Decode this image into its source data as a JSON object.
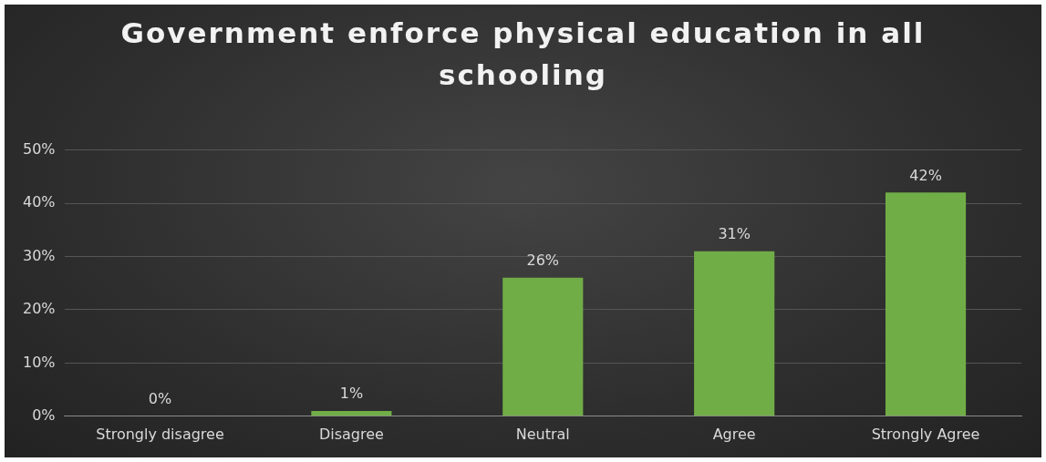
{
  "chart_data": {
    "type": "bar",
    "title": "Government enforce physical education in all schooling",
    "categories": [
      "Strongly disagree",
      "Disagree",
      "Neutral",
      "Agree",
      "Strongly Agree"
    ],
    "values": [
      0,
      1,
      26,
      31,
      42
    ],
    "value_labels": [
      "0%",
      "1%",
      "26%",
      "31%",
      "42%"
    ],
    "color": "#70ad47",
    "ylim": [
      0,
      50
    ],
    "yticks": [
      {
        "value": 0,
        "label": "0%"
      },
      {
        "value": 10,
        "label": "10%"
      },
      {
        "value": 20,
        "label": "20%"
      },
      {
        "value": 30,
        "label": "30%"
      },
      {
        "value": 40,
        "label": "40%"
      },
      {
        "value": 50,
        "label": "50%"
      }
    ],
    "grid": "y"
  }
}
